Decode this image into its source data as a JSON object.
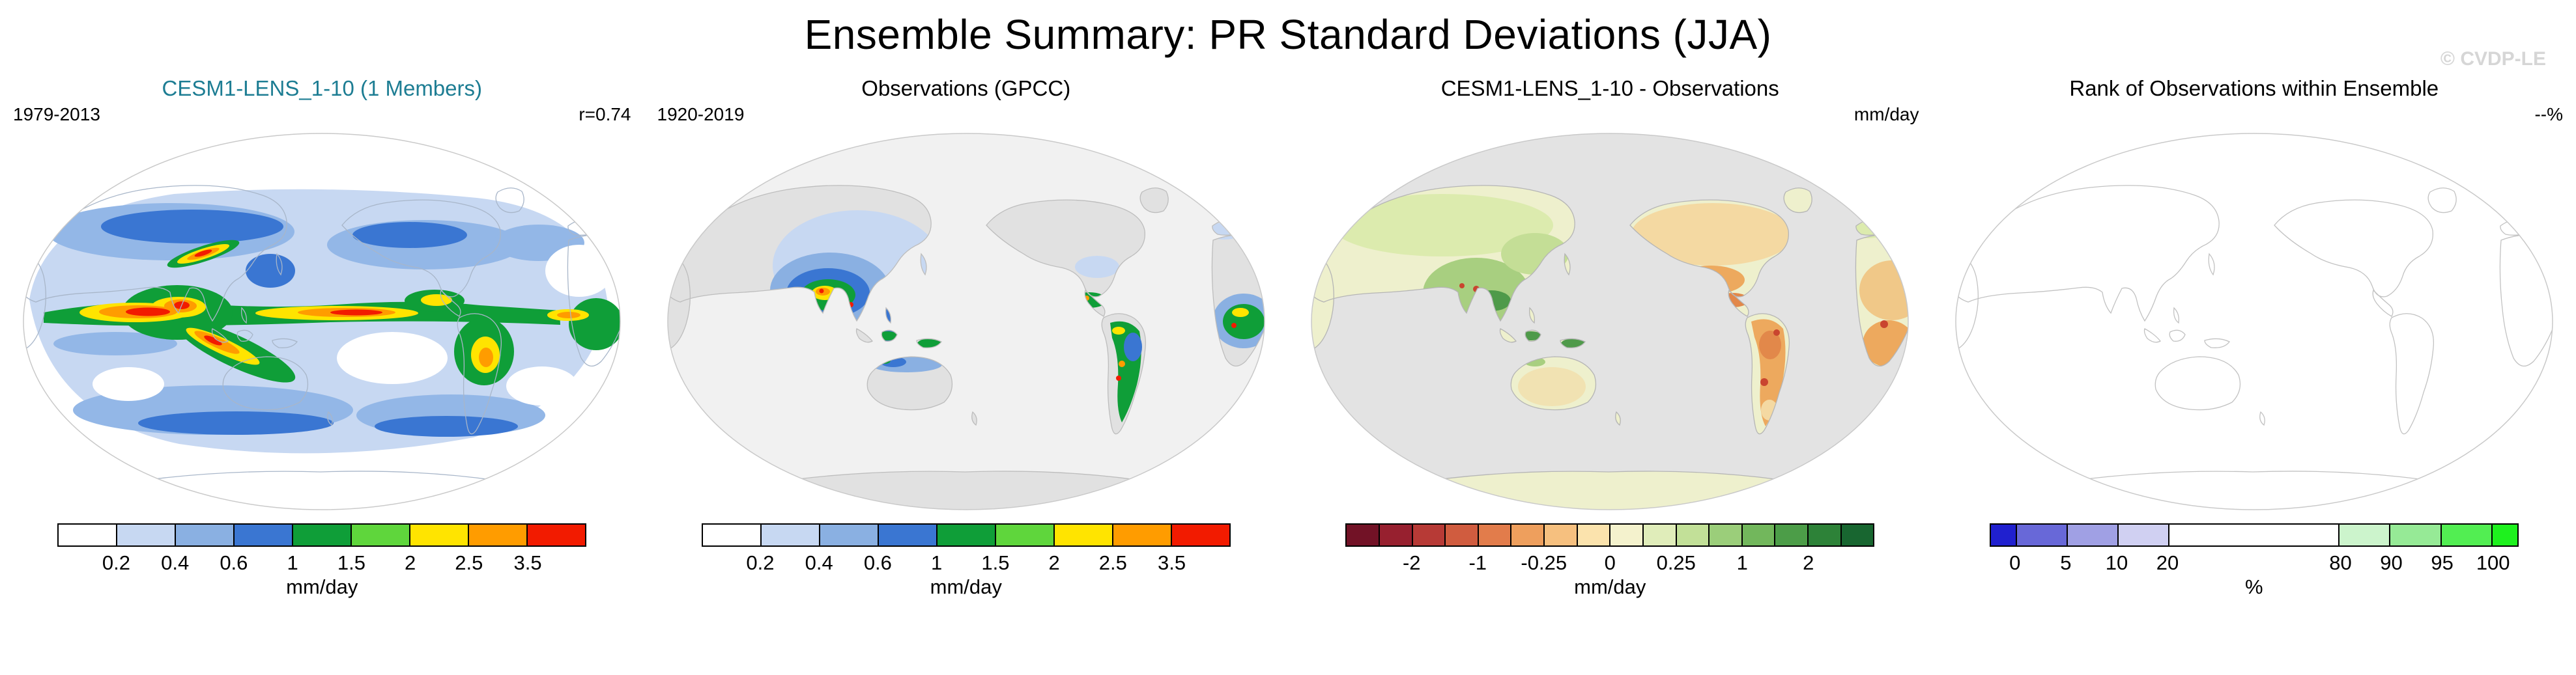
{
  "header": {
    "title": "Ensemble Summary: PR Standard Deviations (JJA)",
    "watermark": "© CVDP-LE"
  },
  "panels": [
    {
      "id": "model",
      "title": "CESM1-LENS_1-10 (1 Members)",
      "title_color": "#1d7d93",
      "left_label": "1979-2013",
      "right_label": "r=0.74",
      "colorbar": {
        "unit": "mm/day",
        "segments": [
          {
            "color": "#ffffff",
            "width": 1
          },
          {
            "color": "#c7d8f2",
            "width": 1
          },
          {
            "color": "#8ab0e2",
            "width": 1
          },
          {
            "color": "#3a76d2",
            "width": 1
          },
          {
            "color": "#0f9e38",
            "width": 1
          },
          {
            "color": "#5fd63c",
            "width": 1
          },
          {
            "color": "#ffe400",
            "width": 1
          },
          {
            "color": "#ff9c00",
            "width": 1
          },
          {
            "color": "#f21b00",
            "width": 1
          }
        ],
        "ticks": [
          {
            "label": "0.2",
            "pos": 11.11
          },
          {
            "label": "0.4",
            "pos": 22.22
          },
          {
            "label": "0.6",
            "pos": 33.33
          },
          {
            "label": "1",
            "pos": 44.44
          },
          {
            "label": "1.5",
            "pos": 55.56
          },
          {
            "label": "2",
            "pos": 66.67
          },
          {
            "label": "2.5",
            "pos": 77.78
          },
          {
            "label": "3.5",
            "pos": 88.89
          }
        ]
      }
    },
    {
      "id": "observations",
      "title": "Observations (GPCC)",
      "title_color": "#000000",
      "left_label": "1920-2019",
      "right_label": "",
      "colorbar": {
        "unit": "mm/day",
        "segments": [
          {
            "color": "#ffffff",
            "width": 1
          },
          {
            "color": "#c7d8f2",
            "width": 1
          },
          {
            "color": "#8ab0e2",
            "width": 1
          },
          {
            "color": "#3a76d2",
            "width": 1
          },
          {
            "color": "#0f9e38",
            "width": 1
          },
          {
            "color": "#5fd63c",
            "width": 1
          },
          {
            "color": "#ffe400",
            "width": 1
          },
          {
            "color": "#ff9c00",
            "width": 1
          },
          {
            "color": "#f21b00",
            "width": 1
          }
        ],
        "ticks": [
          {
            "label": "0.2",
            "pos": 11.11
          },
          {
            "label": "0.4",
            "pos": 22.22
          },
          {
            "label": "0.6",
            "pos": 33.33
          },
          {
            "label": "1",
            "pos": 44.44
          },
          {
            "label": "1.5",
            "pos": 55.56
          },
          {
            "label": "2",
            "pos": 66.67
          },
          {
            "label": "2.5",
            "pos": 77.78
          },
          {
            "label": "3.5",
            "pos": 88.89
          }
        ]
      }
    },
    {
      "id": "difference",
      "title": "CESM1-LENS_1-10 - Observations",
      "title_color": "#000000",
      "left_label": "",
      "right_label": "mm/day",
      "colorbar": {
        "unit": "mm/day",
        "segments": [
          {
            "color": "#721226",
            "width": 1
          },
          {
            "color": "#97202f",
            "width": 1
          },
          {
            "color": "#b73a36",
            "width": 1
          },
          {
            "color": "#d05c3f",
            "width": 1
          },
          {
            "color": "#e27c4b",
            "width": 1
          },
          {
            "color": "#ee9f5d",
            "width": 1
          },
          {
            "color": "#f6c07f",
            "width": 1
          },
          {
            "color": "#fbe3ad",
            "width": 1
          },
          {
            "color": "#f4f2cd",
            "width": 1
          },
          {
            "color": "#e0edba",
            "width": 1
          },
          {
            "color": "#c2e098",
            "width": 1
          },
          {
            "color": "#9bce7a",
            "width": 1
          },
          {
            "color": "#72b75c",
            "width": 1
          },
          {
            "color": "#4c9d48",
            "width": 1
          },
          {
            "color": "#2d8238",
            "width": 1
          },
          {
            "color": "#186630",
            "width": 1
          }
        ],
        "ticks": [
          {
            "label": "-2",
            "pos": 12.5
          },
          {
            "label": "-1",
            "pos": 25
          },
          {
            "label": "-0.25",
            "pos": 37.5
          },
          {
            "label": "0",
            "pos": 50
          },
          {
            "label": "0.25",
            "pos": 62.5
          },
          {
            "label": "1",
            "pos": 75
          },
          {
            "label": "2",
            "pos": 87.5
          }
        ]
      }
    },
    {
      "id": "rank",
      "title": "Rank of Observations within Ensemble",
      "title_color": "#000000",
      "left_label": "",
      "right_label": "--%",
      "colorbar": {
        "unit": "%",
        "segments": [
          {
            "color": "#2020cf",
            "width": 0.5
          },
          {
            "color": "#6868d8",
            "width": 1
          },
          {
            "color": "#a0a0e4",
            "width": 1
          },
          {
            "color": "#d0d0f2",
            "width": 1
          },
          {
            "color": "#ffffff",
            "width": 3.4
          },
          {
            "color": "#ccf4cc",
            "width": 1
          },
          {
            "color": "#96ea96",
            "width": 1
          },
          {
            "color": "#52ee52",
            "width": 1
          },
          {
            "color": "#1ef11e",
            "width": 0.5
          }
        ],
        "ticks": [
          {
            "label": "0",
            "pos": 4.81
          },
          {
            "label": "5",
            "pos": 14.42
          },
          {
            "label": "10",
            "pos": 24.04
          },
          {
            "label": "20",
            "pos": 33.65
          },
          {
            "label": "80",
            "pos": 66.35
          },
          {
            "label": "90",
            "pos": 75.96
          },
          {
            "label": "95",
            "pos": 85.58
          },
          {
            "label": "100",
            "pos": 95.19
          }
        ]
      }
    }
  ],
  "chart_data": [
    {
      "type": "heatmap",
      "panel": 1,
      "title": "CESM1-LENS_1-10 (1 Members)",
      "period": "1979-2013",
      "pattern_correlation": "r=0.74",
      "units": "mm/day",
      "levels": [
        0.2,
        0.4,
        0.6,
        1,
        1.5,
        2,
        2.5,
        3.5
      ],
      "palette": [
        "#ffffff",
        "#c7d8f2",
        "#8ab0e2",
        "#3a76d2",
        "#0f9e38",
        "#5fd63c",
        "#ffe400",
        "#ff9c00",
        "#f21b00"
      ],
      "summary": "Global JJA precipitation standard deviation from the model; maxima above 3.5 mm/day (red) along the tropical west Pacific, ITCZ and SPCZ and the Bay of Bengal; 0.2-0.6 mm/day blues over extratropical oceans; near-zero white at the poles and subtropical dry zones."
    },
    {
      "type": "heatmap",
      "panel": 2,
      "title": "Observations (GPCC)",
      "period": "1920-2019",
      "units": "mm/day",
      "levels": [
        0.2,
        0.4,
        0.6,
        1,
        1.5,
        2,
        2.5,
        3.5
      ],
      "palette": [
        "#ffffff",
        "#c7d8f2",
        "#8ab0e2",
        "#3a76d2",
        "#0f9e38",
        "#5fd63c",
        "#ffe400",
        "#ff9c00",
        "#f21b00"
      ],
      "summary": "Observed land-only JJA precipitation standard deviation; maxima over South and Southeast Asia, tropical Africa, Central America and the Amazon; oceans shown in gray (no data)."
    },
    {
      "type": "heatmap",
      "panel": 3,
      "title": "CESM1-LENS_1-10 - Observations",
      "units": "mm/day",
      "levels": [
        -2,
        -1,
        -0.25,
        0,
        0.25,
        1,
        2
      ],
      "palette": [
        "#721226",
        "#97202f",
        "#b73a36",
        "#d05c3f",
        "#e27c4b",
        "#ee9f5d",
        "#f6c07f",
        "#fbe3ad",
        "#f4f2cd",
        "#e0edba",
        "#c2e098",
        "#9bce7a",
        "#72b75c",
        "#4c9d48",
        "#2d8238",
        "#186630"
      ],
      "summary": "Model minus observations over land; orange negative-side values over the Americas and parts of Africa, greens over South and Southeast Asia, pale yellow near zero elsewhere; oceans gray (no data)."
    },
    {
      "type": "heatmap",
      "panel": 4,
      "title": "Rank of Observations within Ensemble",
      "units": "%",
      "value": "--%",
      "levels": [
        0,
        5,
        10,
        20,
        80,
        90,
        95,
        100
      ],
      "palette": [
        "#2020cf",
        "#6868d8",
        "#a0a0e4",
        "#d0d0f2",
        "#ffffff",
        "#ccf4cc",
        "#96ea96",
        "#52ee52",
        "#1ef11e"
      ],
      "summary": "Blank map showing coastlines only; rank field is empty for a single ensemble member."
    }
  ]
}
